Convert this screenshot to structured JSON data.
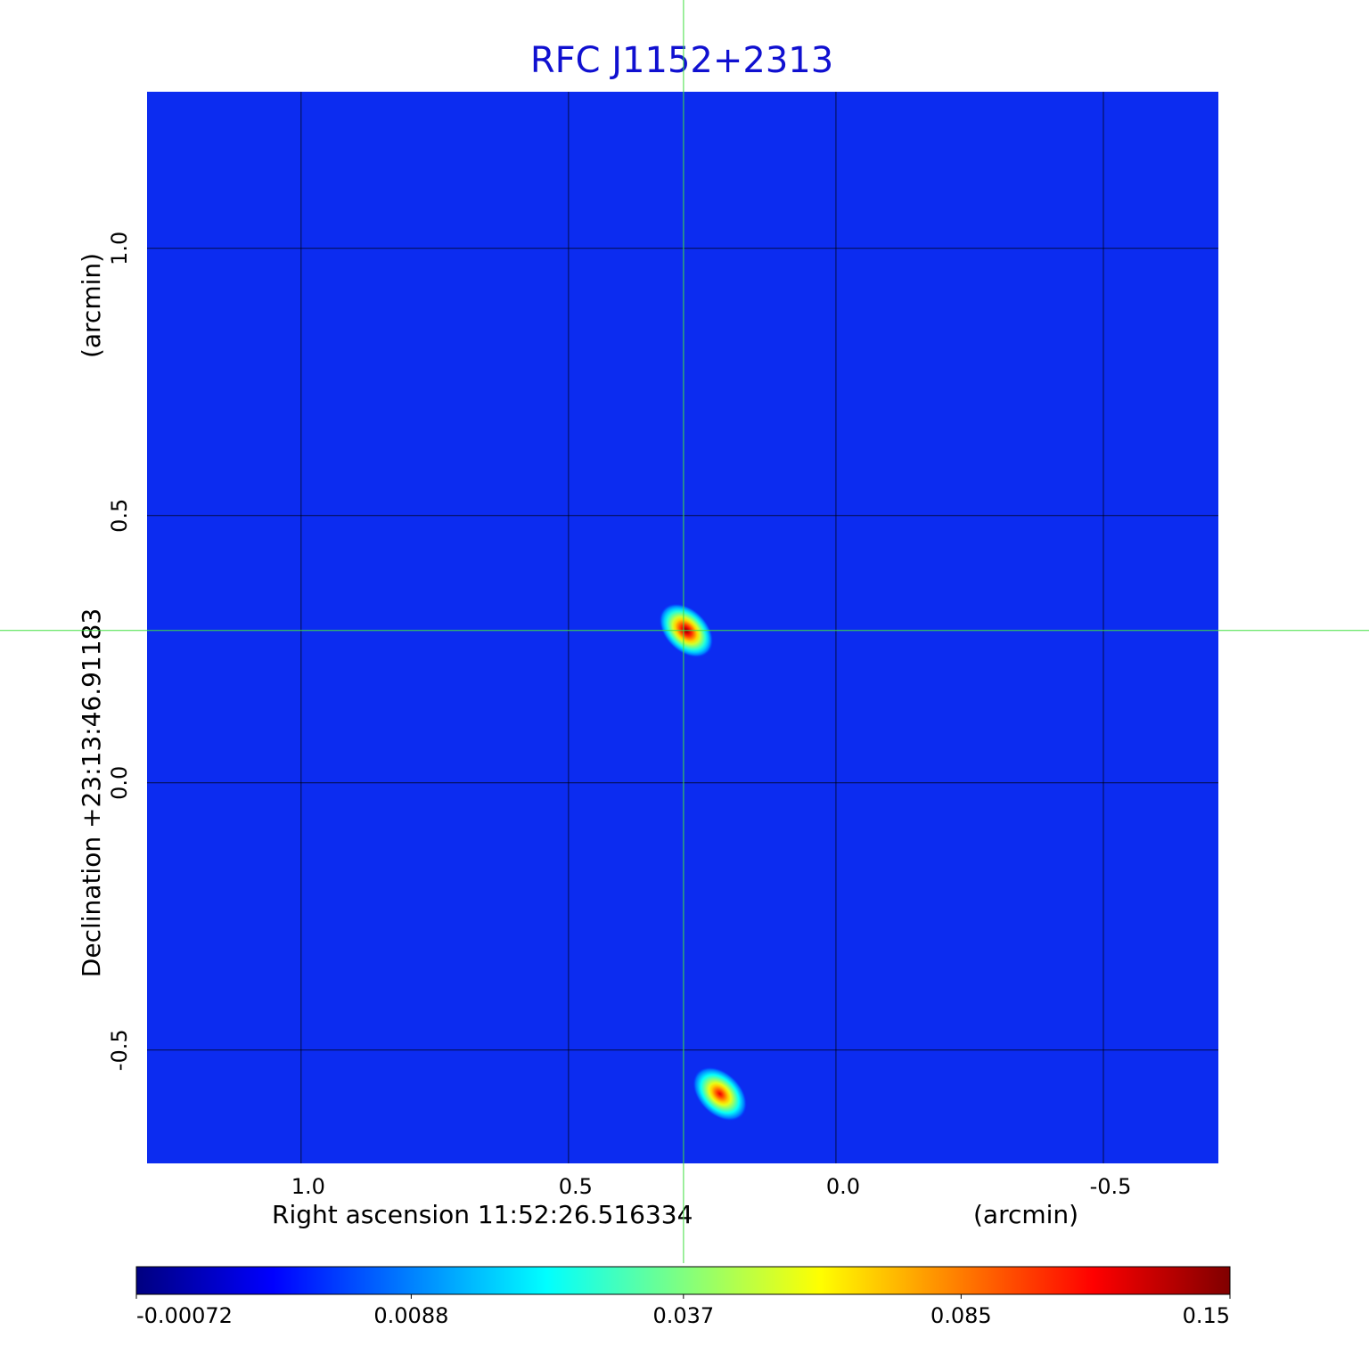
{
  "chart_data": {
    "type": "image",
    "title": "RFC J1152+2313",
    "title_color": "#1010d0",
    "x_label": "Right ascension  11:52:26.516334",
    "x_unit": "(arcmin)",
    "y_label": "Declination  +23:13:46.91183",
    "y_unit": "(arcmin)",
    "xlim": [
      1.288,
      -0.715
    ],
    "ylim": [
      -0.712,
      1.293
    ],
    "xticks": [
      {
        "value": 1.0,
        "label": "1.0"
      },
      {
        "value": 0.5,
        "label": "0.5"
      },
      {
        "value": 0.0,
        "label": "0.0"
      },
      {
        "value": -0.5,
        "label": "-0.5"
      }
    ],
    "yticks": [
      {
        "value": 1.0,
        "label": "1.0"
      },
      {
        "value": 0.5,
        "label": "0.5"
      },
      {
        "value": 0.0,
        "label": "0.0"
      },
      {
        "value": -0.5,
        "label": "-0.5"
      }
    ],
    "grid": true,
    "background_color": "#0c2cf0",
    "crosshair": [
      0.285,
      0.285
    ],
    "crosshair_color": "#40e040",
    "sources": [
      {
        "x": 0.28,
        "y": 0.285,
        "peak": 0.15
      },
      {
        "x": 0.217,
        "y": -0.582,
        "peak": 0.12
      }
    ],
    "colorbar": {
      "lim": [
        -0.00072,
        0.15
      ],
      "scale": "sqrt",
      "colormap": "jet",
      "ticks": [
        -0.00072,
        0.0088,
        0.037,
        0.085,
        0.15
      ]
    }
  }
}
